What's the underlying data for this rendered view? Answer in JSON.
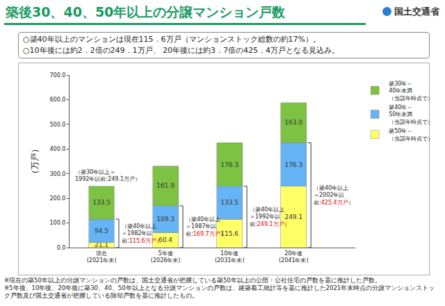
{
  "header": {
    "title": "築後30、40、50年以上の分譲マンション戸数",
    "organization": "国土交通省",
    "bullets": [
      "○築40年以上のマンションは現在115．6万戸（マンションストック総数の約17%）。",
      "○10年後には約2．2倍の249．1万戸、 20年後には約3．7倍の425．4万戸となる見込み。"
    ]
  },
  "chart_data": {
    "type": "bar",
    "stacked": true,
    "data_labels": true,
    "grid": false,
    "legend": "top-right",
    "y_label": "（万戸）",
    "categories": [
      "現在\n(2021年末)",
      "5年後\n(2026年末)",
      "10年後\n(2031年末)",
      "20年後\n(2041年末)"
    ],
    "series": [
      {
        "name": "築50年～\n（当該年時点で）",
        "color": "#ffff66",
        "values": [
          21.1,
          60.4,
          115.6,
          249.1
        ]
      },
      {
        "name": "築40年～\n50年未満\n（当該年時点で）",
        "color": "#66b3f5",
        "values": [
          94.5,
          109.3,
          133.5,
          176.3
        ]
      },
      {
        "name": "築30年～\n40年未満\n（当該年時点で）",
        "color": "#7dc243",
        "values": [
          133.5,
          161.9,
          176.3,
          163.0
        ],
        "value_labels": [
          "133.5",
          "161.9",
          "176.3",
          "163.0"
        ]
      }
    ],
    "ylim": [
      0,
      700
    ],
    "yticks": [
      {
        "value": 0,
        "label": "0.0"
      },
      {
        "value": 100,
        "label": "100.0"
      },
      {
        "value": 200,
        "label": "200.0"
      },
      {
        "value": 300,
        "label": "300.0"
      },
      {
        "value": 400,
        "label": "400.0"
      },
      {
        "value": 500,
        "label": "500.0"
      },
      {
        "value": 600,
        "label": "600.0"
      },
      {
        "value": 700,
        "label": "700.0"
      }
    ],
    "total_note": {
      "category": "現在\n(2021年末)",
      "parts": [
        {
          "text": "（築30年以上＝\n1992年以前:249.1万戸）"
        }
      ]
    },
    "bracket_notes": [
      {
        "category": "現在\n(2021年末)",
        "parts": [
          {
            "text": "（築40年以上\n＝1982年以\n前:"
          },
          {
            "text": "115.6万戸",
            "color": "#e00000"
          },
          {
            "text": "）"
          }
        ]
      },
      {
        "category": "5年後\n(2026年末)",
        "parts": [
          {
            "text": "（築40年以上\n＝1987年以\n前:"
          },
          {
            "text": "169.7万戸",
            "color": "#e00000"
          },
          {
            "text": "）"
          }
        ]
      },
      {
        "category": "10年後\n(2031年末)",
        "parts": [
          {
            "text": "（築40年以上\n＝1992年以\n前:"
          },
          {
            "text": "249.1万戸",
            "color": "#e00000"
          },
          {
            "text": "）"
          }
        ]
      },
      {
        "category": "20年後\n(2041年末)",
        "parts": [
          {
            "text": "（築40年以上\n＝2002年以\n前:"
          },
          {
            "text": "425.4万戸",
            "color": "#e00000"
          },
          {
            "text": "）"
          }
        ]
      }
    ]
  },
  "footnotes": [
    "※現在の築50年以上の分譲マンションの戸数は、国土交通省が把握している築50年以上の公団・公社住宅の戸数を基に推計した戸数。",
    "※5年後、10年後、20年後に築30、40、50年以上となる分譲マンションの戸数は、建築着工統計等を基に推計した2021年末時点の分譲マンションストック戸数及び国土交通省が把握している除却戸数を基に推計したもの。"
  ]
}
